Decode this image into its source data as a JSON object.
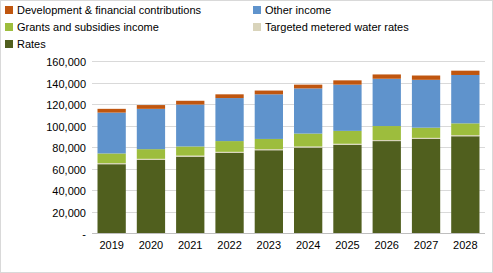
{
  "chart_data": {
    "type": "bar",
    "stacked": true,
    "grid": true,
    "categories": [
      "2019",
      "2020",
      "2021",
      "2022",
      "2023",
      "2024",
      "2025",
      "2026",
      "2027",
      "2028"
    ],
    "series": [
      {
        "name": "Development & financial contributions",
        "color": "#c0560f",
        "values": [
          3500,
          3500,
          3500,
          3500,
          3500,
          3500,
          4000,
          4000,
          4000,
          4000
        ]
      },
      {
        "name": "Other income",
        "color": "#5f93cc",
        "values": [
          38000,
          37500,
          39000,
          40000,
          41500,
          42000,
          43000,
          44000,
          44500,
          45000
        ]
      },
      {
        "name": "Grants and subsidies income",
        "color": "#9dbd3d",
        "values": [
          9000,
          9000,
          8500,
          10000,
          9500,
          12000,
          12000,
          13000,
          9500,
          11000
        ]
      },
      {
        "name": "Targeted metered water rates",
        "color": "#d9d4bb",
        "values": [
          1000,
          1000,
          1000,
          1000,
          1000,
          1000,
          1000,
          1000,
          1000,
          1000
        ]
      },
      {
        "name": "Rates",
        "color": "#505f1e",
        "values": [
          64000,
          68000,
          71000,
          74500,
          77000,
          79500,
          82000,
          85500,
          87500,
          90000
        ]
      }
    ],
    "ylim": [
      0,
      160000
    ],
    "yticks": [
      {
        "value": 0,
        "label": "-"
      },
      {
        "value": 20000,
        "label": "20,000"
      },
      {
        "value": 40000,
        "label": "40,000"
      },
      {
        "value": 60000,
        "label": "60,000"
      },
      {
        "value": 80000,
        "label": "80,000"
      },
      {
        "value": 100000,
        "label": "100,000"
      },
      {
        "value": 120000,
        "label": "120,000"
      },
      {
        "value": 140000,
        "label": "140,000"
      },
      {
        "value": 160000,
        "label": "160,000"
      }
    ]
  }
}
